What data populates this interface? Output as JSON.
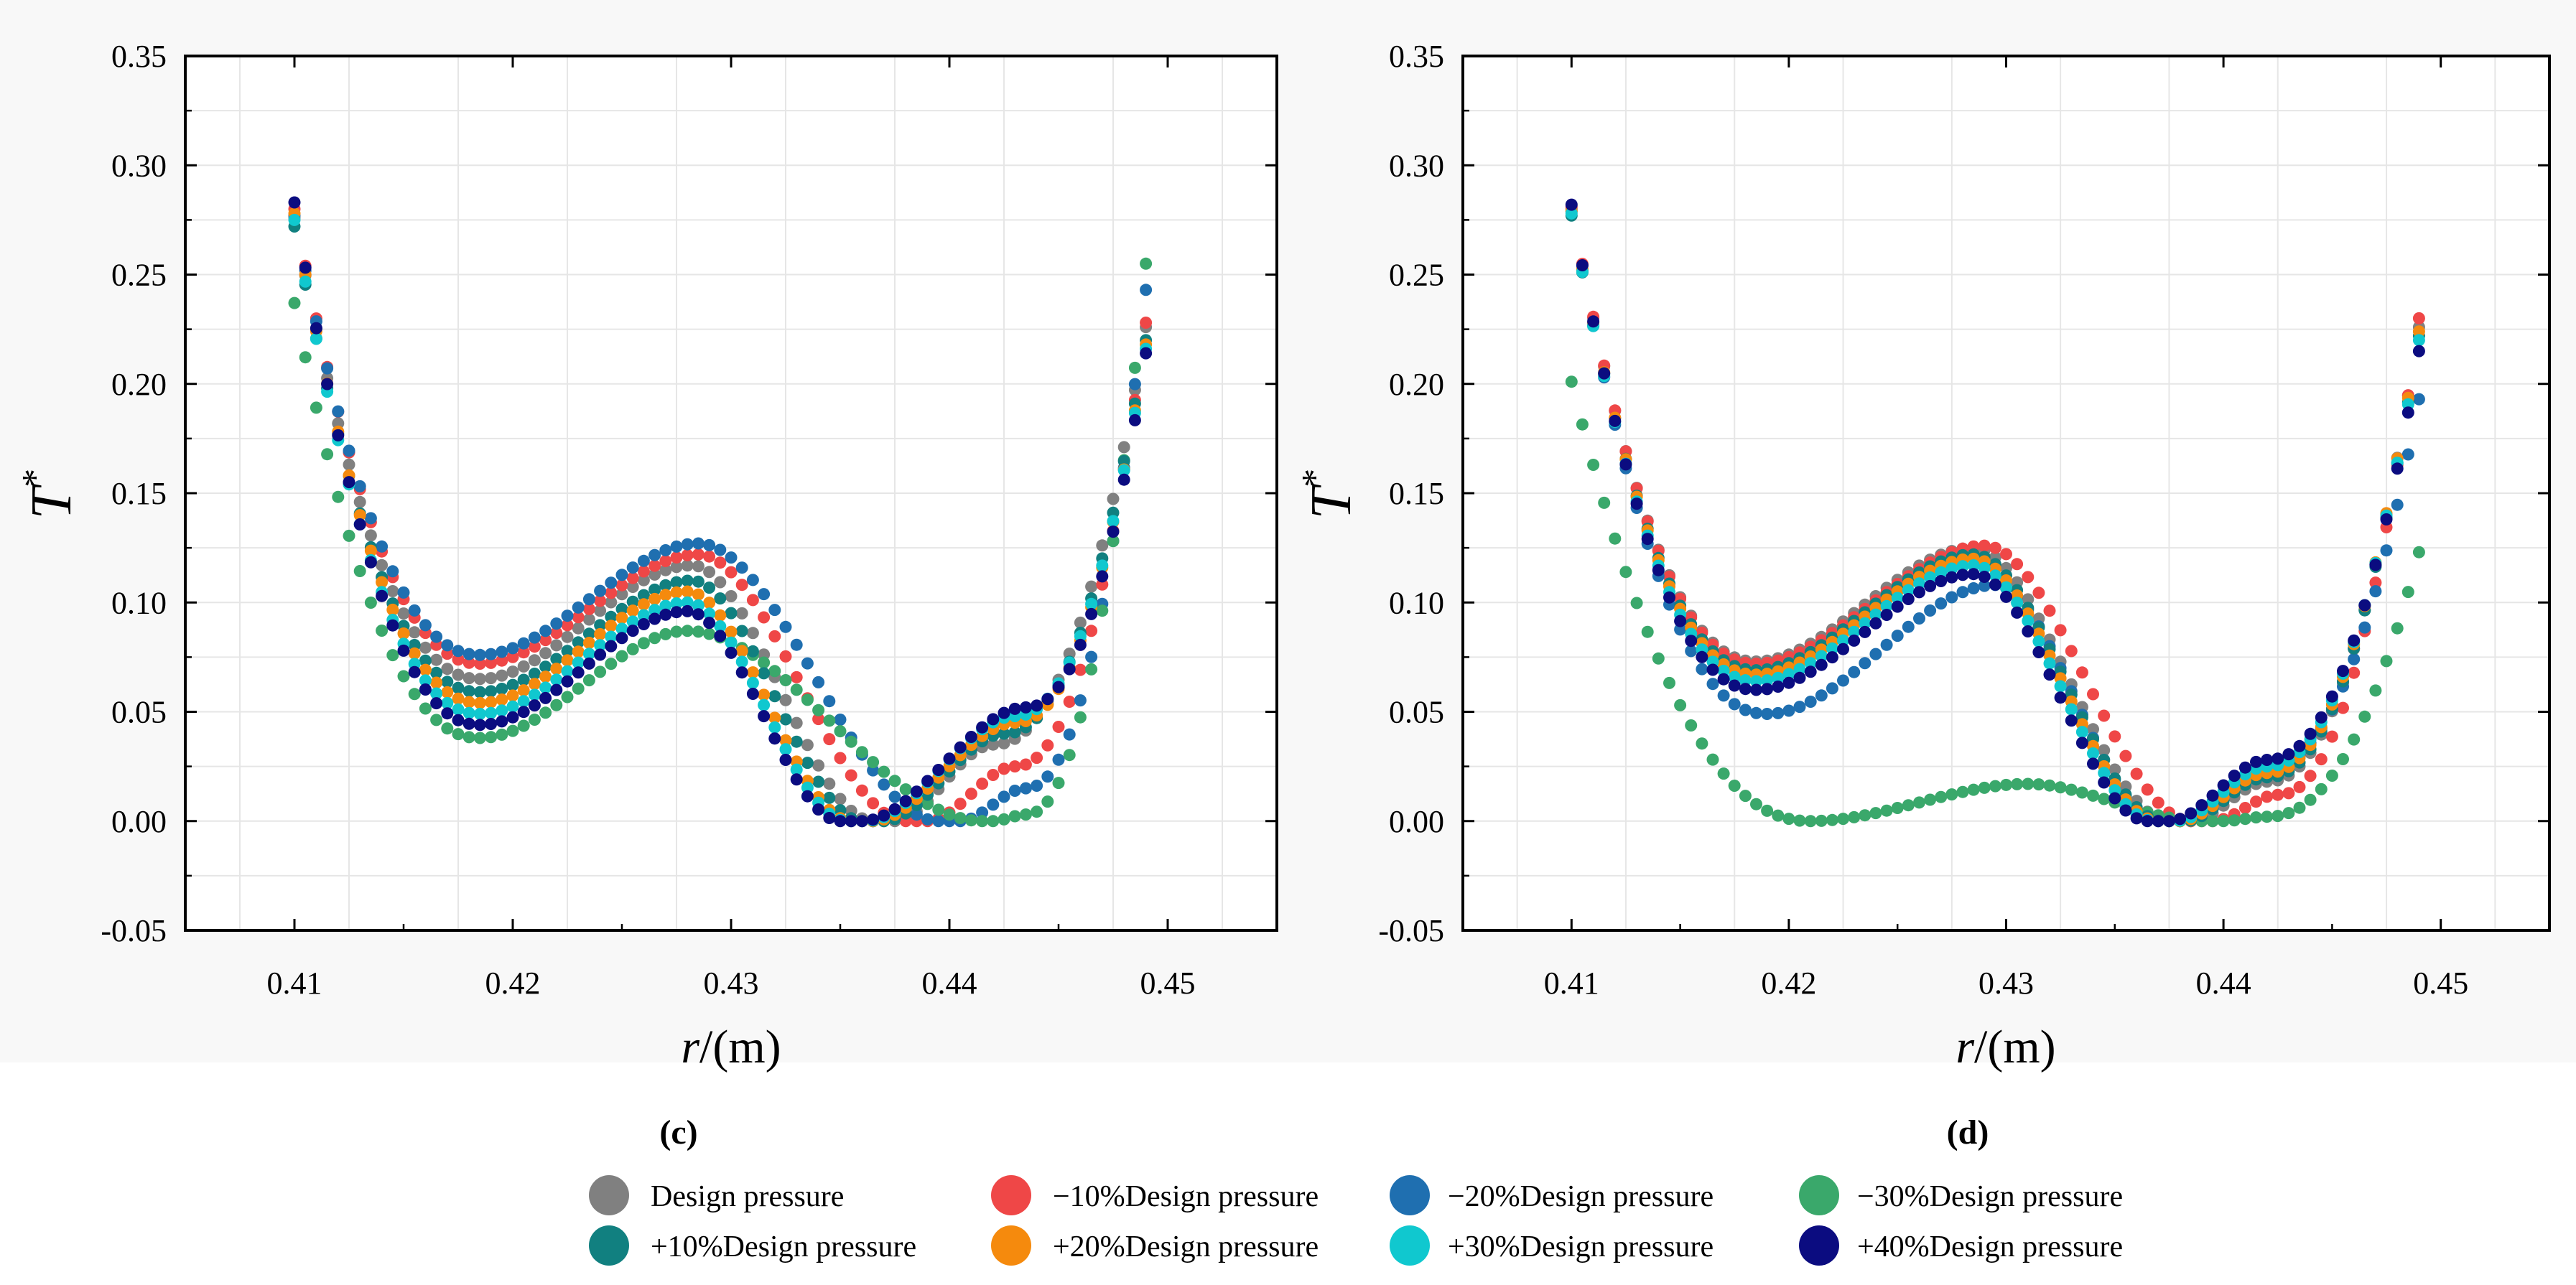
{
  "panels": [
    {
      "label": "(c)",
      "ylabel": "T",
      "ylabel_sup": "*",
      "xlabel_italic": "r",
      "xlabel_rest": "/(m)"
    },
    {
      "label": "(d)",
      "ylabel": "T",
      "ylabel_sup": "*",
      "xlabel_italic": "r",
      "xlabel_rest": "/(m)"
    }
  ],
  "legend": [
    {
      "name": "Design pressure",
      "color": "#808080"
    },
    {
      "name": "−10%Design pressure",
      "color": "#ef4747"
    },
    {
      "name": "−20%Design pressure",
      "color": "#1f6fb0"
    },
    {
      "name": "−30%Design pressure",
      "color": "#3aa86b"
    },
    {
      "name": "+10%Design pressure",
      "color": "#118080"
    },
    {
      "name": "+20%Design pressure",
      "color": "#f58a0d"
    },
    {
      "name": "+30%Design pressure",
      "color": "#10c8cf"
    },
    {
      "name": "+40%Design pressure",
      "color": "#0b0c80"
    }
  ],
  "chart_data": [
    {
      "type": "scatter",
      "title": "",
      "xlabel": "r/(m)",
      "ylabel": "T*",
      "xlim": [
        0.405,
        0.455
      ],
      "ylim": [
        -0.05,
        0.35
      ],
      "xticks": [
        "0.41",
        "0.42",
        "0.43",
        "0.44",
        "0.45"
      ],
      "yticks": [
        "-0.05",
        "0.00",
        "0.05",
        "0.10",
        "0.15",
        "0.20",
        "0.25",
        "0.30",
        "0.35"
      ],
      "grid": true,
      "x_range": [
        0.41,
        0.449
      ],
      "x_step": 0.0005,
      "series": [
        {
          "name": "Design pressure",
          "color": "#808080",
          "start": 0.276,
          "wmin": 0.065,
          "xmin": 0.4185,
          "hmax": 0.117,
          "xmax": 0.4282,
          "zero_left": 0.4365,
          "zero_right": 0.4375,
          "shoulder_val": 0.035,
          "shoulder_x": 0.442,
          "end": 0.226
        },
        {
          "name": "−10%Design pressure",
          "color": "#ef4747",
          "start": 0.28,
          "wmin": 0.072,
          "xmin": 0.4185,
          "hmax": 0.122,
          "xmax": 0.4285,
          "zero_left": 0.438,
          "zero_right": 0.439,
          "shoulder_val": 0.025,
          "shoulder_x": 0.443,
          "end": 0.228
        },
        {
          "name": "−20%Design pressure",
          "color": "#1f6fb0",
          "start": 0.277,
          "wmin": 0.076,
          "xmin": 0.4185,
          "hmax": 0.127,
          "xmax": 0.4285,
          "zero_left": 0.4395,
          "zero_right": 0.4405,
          "shoulder_val": 0.015,
          "shoulder_x": 0.4435,
          "end": 0.243
        },
        {
          "name": "−30%Design pressure",
          "color": "#3aa86b",
          "start": 0.237,
          "wmin": 0.038,
          "xmin": 0.4185,
          "hmax": 0.087,
          "xmax": 0.428,
          "zero_left": 0.4415,
          "zero_right": 0.442,
          "shoulder_val": 0.003,
          "shoulder_x": 0.4435,
          "end": 0.255
        },
        {
          "name": "+10%Design pressure",
          "color": "#118080",
          "start": 0.272,
          "wmin": 0.059,
          "xmin": 0.4185,
          "hmax": 0.11,
          "xmax": 0.4282,
          "zero_left": 0.436,
          "zero_right": 0.437,
          "shoulder_val": 0.04,
          "shoulder_x": 0.4425,
          "end": 0.22
        },
        {
          "name": "+20%Design pressure",
          "color": "#f58a0d",
          "start": 0.278,
          "wmin": 0.054,
          "xmin": 0.4185,
          "hmax": 0.105,
          "xmax": 0.428,
          "zero_left": 0.4355,
          "zero_right": 0.4365,
          "shoulder_val": 0.045,
          "shoulder_x": 0.443,
          "end": 0.218
        },
        {
          "name": "+30%Design pressure",
          "color": "#10c8cf",
          "start": 0.275,
          "wmin": 0.049,
          "xmin": 0.4185,
          "hmax": 0.1,
          "xmax": 0.428,
          "zero_left": 0.4353,
          "zero_right": 0.4362,
          "shoulder_val": 0.048,
          "shoulder_x": 0.443,
          "end": 0.216
        },
        {
          "name": "+40%Design pressure",
          "color": "#0b0c80",
          "start": 0.283,
          "wmin": 0.044,
          "xmin": 0.4185,
          "hmax": 0.096,
          "xmax": 0.428,
          "zero_left": 0.435,
          "zero_right": 0.436,
          "shoulder_val": 0.052,
          "shoulder_x": 0.4435,
          "end": 0.214
        }
      ]
    },
    {
      "type": "scatter",
      "title": "",
      "xlabel": "r/(m)",
      "ylabel": "T*",
      "xlim": [
        0.405,
        0.455
      ],
      "ylim": [
        -0.05,
        0.35
      ],
      "xticks": [
        "0.41",
        "0.42",
        "0.43",
        "0.44",
        "0.45"
      ],
      "yticks": [
        "-0.05",
        "0.00",
        "0.05",
        "0.10",
        "0.15",
        "0.20",
        "0.25",
        "0.30",
        "0.35"
      ],
      "grid": true,
      "x_range": [
        0.41,
        0.449
      ],
      "x_step": 0.0005,
      "series": [
        {
          "name": "Design pressure",
          "color": "#808080",
          "start": 0.28,
          "wmin": 0.073,
          "xmin": 0.4185,
          "hmax": 0.125,
          "xmax": 0.4285,
          "zero_left": 0.4375,
          "zero_right": 0.4385,
          "shoulder_val": 0.018,
          "shoulder_x": 0.442,
          "end": 0.226
        },
        {
          "name": "−10%Design pressure",
          "color": "#ef4747",
          "start": 0.281,
          "wmin": 0.072,
          "xmin": 0.4185,
          "hmax": 0.126,
          "xmax": 0.429,
          "zero_left": 0.4385,
          "zero_right": 0.4395,
          "shoulder_val": 0.012,
          "shoulder_x": 0.4425,
          "end": 0.23
        },
        {
          "name": "−20%Design pressure",
          "color": "#1f6fb0",
          "start": 0.279,
          "wmin": 0.049,
          "xmin": 0.419,
          "hmax": 0.108,
          "xmax": 0.4295,
          "zero_left": 0.437,
          "zero_right": 0.438,
          "shoulder_val": 0.025,
          "shoulder_x": 0.442,
          "end": 0.193
        },
        {
          "name": "−30%Design pressure",
          "color": "#3aa86b",
          "start": 0.201,
          "wmin": 0.0,
          "xmin": 0.421,
          "hmax": 0.017,
          "xmax": 0.431,
          "zero_left": 0.439,
          "zero_right": 0.44,
          "shoulder_val": 0.002,
          "shoulder_x": 0.442,
          "end": 0.123
        },
        {
          "name": "+10%Design pressure",
          "color": "#118080",
          "start": 0.277,
          "wmin": 0.069,
          "xmin": 0.4185,
          "hmax": 0.122,
          "xmax": 0.4285,
          "zero_left": 0.4372,
          "zero_right": 0.4382,
          "shoulder_val": 0.02,
          "shoulder_x": 0.442,
          "end": 0.222
        },
        {
          "name": "+20%Design pressure",
          "color": "#f58a0d",
          "start": 0.279,
          "wmin": 0.067,
          "xmin": 0.4185,
          "hmax": 0.12,
          "xmax": 0.4285,
          "zero_left": 0.437,
          "zero_right": 0.438,
          "shoulder_val": 0.022,
          "shoulder_x": 0.442,
          "end": 0.224
        },
        {
          "name": "+30%Design pressure",
          "color": "#10c8cf",
          "start": 0.278,
          "wmin": 0.064,
          "xmin": 0.4185,
          "hmax": 0.117,
          "xmax": 0.4285,
          "zero_left": 0.4368,
          "zero_right": 0.4378,
          "shoulder_val": 0.025,
          "shoulder_x": 0.442,
          "end": 0.22
        },
        {
          "name": "+40%Design pressure",
          "color": "#0b0c80",
          "start": 0.282,
          "wmin": 0.06,
          "xmin": 0.4185,
          "hmax": 0.113,
          "xmax": 0.4285,
          "zero_left": 0.4365,
          "zero_right": 0.4375,
          "shoulder_val": 0.028,
          "shoulder_x": 0.442,
          "end": 0.215
        }
      ]
    }
  ]
}
